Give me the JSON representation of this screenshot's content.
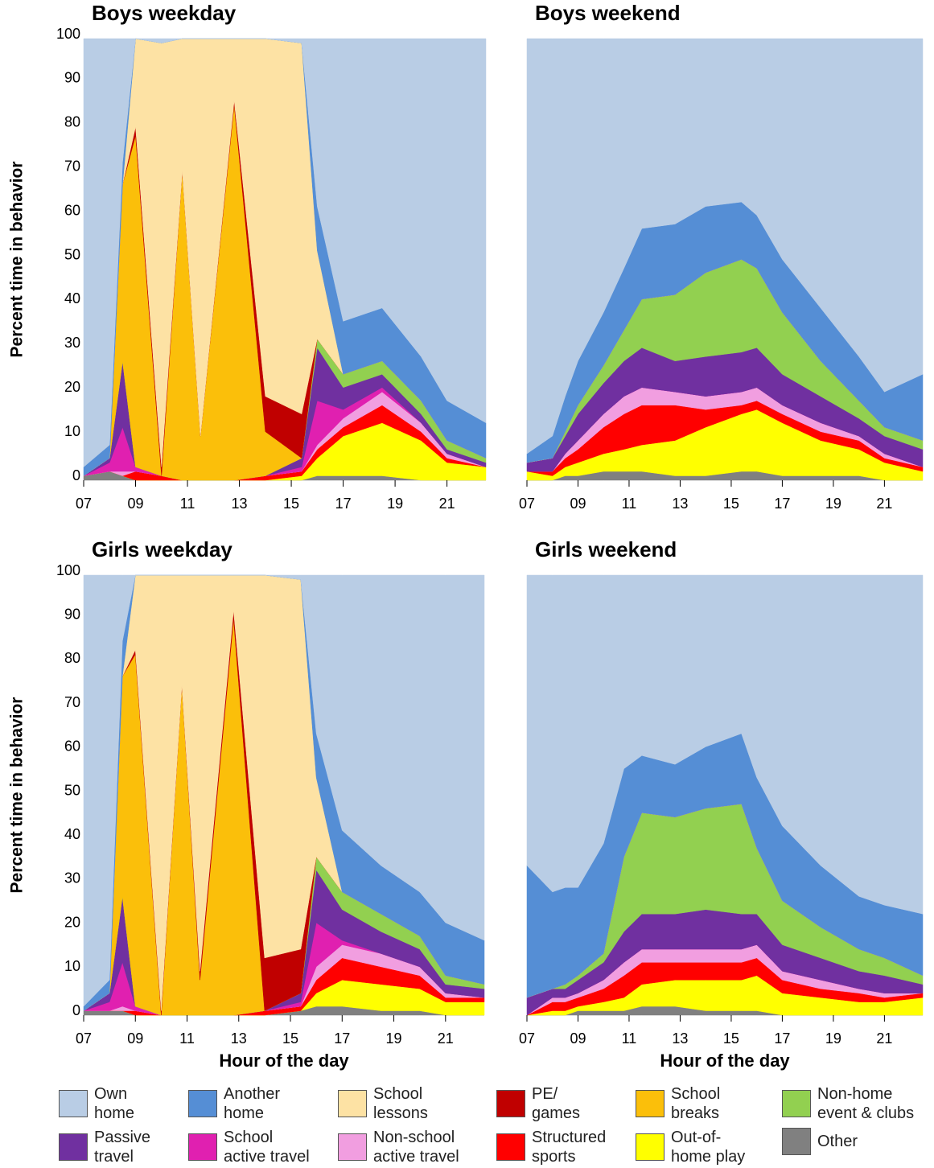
{
  "legend": {
    "items": [
      {
        "name": "Own\nhome",
        "color": "#b9cde5"
      },
      {
        "name": "Another\nhome",
        "color": "#558ed5"
      },
      {
        "name": "School\nlessons",
        "color": "#fde2a4"
      },
      {
        "name": "PE/\ngames",
        "color": "#c00000"
      },
      {
        "name": "School\nbreaks",
        "color": "#fbbf0a"
      },
      {
        "name": "Non-home\nevent & clubs",
        "color": "#92d050"
      },
      {
        "name": "Passive\ntravel",
        "color": "#7030a0"
      },
      {
        "name": "School\nactive travel",
        "color": "#e020b0"
      },
      {
        "name": "Non-school\nactive travel",
        "color": "#f19ee0"
      },
      {
        "name": "Structured\nsports",
        "color": "#ff0000"
      },
      {
        "name": "Out-of-\nhome play",
        "color": "#ffff00"
      },
      {
        "name": "Other",
        "color": "#808080"
      }
    ]
  },
  "chart_data": [
    {
      "type": "stacked-area",
      "title": "Boys weekday",
      "ylabel": "Percent time in behavior",
      "x": [
        7,
        8,
        8.5,
        9,
        10,
        10.8,
        11.5,
        12.8,
        14,
        15.4,
        16,
        17,
        18.5,
        20,
        21,
        22.5
      ],
      "xlim": [
        7,
        22.5
      ],
      "xticks": [
        {
          "value": 7,
          "label": "07"
        },
        {
          "value": 9,
          "label": "09"
        },
        11,
        13,
        15,
        17,
        19,
        21
      ],
      "ylim": [
        0,
        100
      ],
      "yticks": [
        0,
        10,
        20,
        30,
        40,
        50,
        60,
        70,
        80,
        90,
        100
      ],
      "series": [
        {
          "values": [
            97,
            92,
            28,
            0,
            1,
            0,
            0,
            0,
            0,
            1,
            38,
            64,
            61,
            72,
            82,
            87
          ]
        },
        {
          "values": [
            2,
            3,
            5,
            0,
            0,
            0,
            0,
            0,
            0,
            0,
            10,
            12,
            12,
            10,
            9,
            8
          ]
        },
        {
          "values": [
            0,
            0,
            0,
            20,
            96,
            30,
            90,
            14,
            81,
            84,
            20,
            0,
            0,
            0,
            0,
            0
          ]
        },
        {
          "values": [
            0,
            0,
            0,
            2,
            2,
            0,
            0,
            1,
            8,
            10,
            0,
            0,
            0,
            0,
            0,
            0
          ]
        },
        {
          "values": [
            0,
            0,
            40,
            75,
            0,
            70,
            10,
            85,
            10,
            0,
            0,
            0,
            0,
            0,
            0,
            0
          ]
        },
        {
          "values": [
            0,
            0,
            0,
            0,
            0,
            0,
            0,
            0,
            0,
            0,
            2,
            3,
            3,
            3,
            2,
            1
          ]
        },
        {
          "values": [
            0,
            1,
            15,
            0,
            0,
            0,
            0,
            0,
            0,
            2,
            12,
            5,
            3,
            2,
            1,
            1
          ]
        },
        {
          "values": [
            0,
            2,
            10,
            1,
            0,
            0,
            0,
            0,
            0,
            1,
            10,
            2,
            1,
            0,
            0,
            0
          ]
        },
        {
          "values": [
            0,
            0,
            1,
            0,
            0,
            0,
            0,
            0,
            0,
            0,
            1,
            2,
            3,
            2,
            1,
            0
          ]
        },
        {
          "values": [
            0,
            0,
            0,
            2,
            1,
            0,
            0,
            0,
            1,
            1,
            2,
            2,
            4,
            2,
            1,
            0
          ]
        },
        {
          "values": [
            0,
            0,
            0,
            0,
            0,
            0,
            0,
            0,
            0,
            1,
            4,
            9,
            12,
            9,
            4,
            3
          ]
        },
        {
          "values": [
            1,
            2,
            1,
            0,
            0,
            0,
            0,
            0,
            0,
            0,
            1,
            1,
            1,
            0,
            0,
            0
          ]
        }
      ]
    },
    {
      "type": "stacked-area",
      "title": "Boys weekend",
      "x": [
        7,
        8,
        8.5,
        9,
        10,
        10.8,
        11.5,
        12.8,
        14,
        15.4,
        16,
        17,
        18.5,
        20,
        21,
        22.5
      ],
      "xlim": [
        7,
        22.5
      ],
      "xticks": [
        {
          "value": 7,
          "label": "07"
        },
        {
          "value": 9,
          "label": "09"
        },
        11,
        13,
        15,
        17,
        19,
        21
      ],
      "ylim": [
        0,
        100
      ],
      "series": [
        {
          "values": [
            94,
            90,
            81,
            73,
            62,
            52,
            43,
            42,
            38,
            37,
            40,
            50,
            61,
            72,
            80,
            76
          ]
        },
        {
          "values": [
            2,
            5,
            8,
            10,
            12,
            14,
            16,
            16,
            15,
            13,
            12,
            12,
            12,
            10,
            8,
            15
          ]
        },
        {
          "values": [
            0,
            0,
            0,
            0,
            0,
            0,
            0,
            0,
            0,
            0,
            0,
            0,
            0,
            0,
            0,
            0
          ]
        },
        {
          "values": [
            0,
            0,
            0,
            0,
            0,
            0,
            0,
            0,
            0,
            0,
            0,
            0,
            0,
            0,
            0,
            0
          ]
        },
        {
          "values": [
            0,
            0,
            0,
            0,
            0,
            0,
            0,
            0,
            0,
            0,
            0,
            0,
            0,
            0,
            0,
            0
          ]
        },
        {
          "values": [
            0,
            0,
            1,
            2,
            4,
            7,
            11,
            15,
            19,
            21,
            18,
            14,
            8,
            4,
            2,
            2
          ]
        },
        {
          "values": [
            2,
            3,
            4,
            6,
            7,
            8,
            9,
            7,
            9,
            9,
            9,
            7,
            6,
            4,
            4,
            4
          ]
        },
        {
          "values": [
            0,
            0,
            0,
            0,
            0,
            0,
            0,
            0,
            0,
            0,
            0,
            0,
            0,
            0,
            0,
            0
          ]
        },
        {
          "values": [
            0,
            0,
            1,
            2,
            3,
            4,
            4,
            3,
            3,
            3,
            3,
            2,
            2,
            1,
            1,
            0
          ]
        },
        {
          "values": [
            0,
            1,
            2,
            3,
            6,
            8,
            9,
            8,
            4,
            2,
            2,
            2,
            2,
            2,
            1,
            1
          ]
        },
        {
          "values": [
            2,
            1,
            2,
            3,
            4,
            5,
            6,
            8,
            11,
            13,
            14,
            12,
            8,
            6,
            4,
            2
          ]
        },
        {
          "values": [
            0,
            0,
            1,
            1,
            2,
            2,
            2,
            1,
            1,
            2,
            2,
            1,
            1,
            1,
            0,
            0
          ]
        }
      ]
    },
    {
      "type": "stacked-area",
      "title": "Girls weekday",
      "ylabel": "Percent time in behavior",
      "xlabel": "Hour of the  day",
      "x": [
        7,
        8,
        8.5,
        9,
        10,
        10.8,
        11.5,
        12.8,
        14,
        15.4,
        16,
        17,
        18.5,
        20,
        21,
        22.5
      ],
      "xlim": [
        7,
        22.5
      ],
      "xticks": [
        {
          "value": 7,
          "label": "07"
        },
        {
          "value": 9,
          "label": "09"
        },
        11,
        13,
        15,
        17,
        19,
        21
      ],
      "ylim": [
        0,
        100
      ],
      "yticks": [
        0,
        10,
        20,
        30,
        40,
        50,
        60,
        70,
        80,
        90,
        100
      ],
      "series": [
        {
          "values": [
            98,
            92,
            15,
            0,
            0,
            0,
            0,
            0,
            0,
            1,
            36,
            58,
            66,
            72,
            79,
            83
          ]
        },
        {
          "values": [
            1,
            3,
            8,
            0,
            0,
            0,
            0,
            0,
            0,
            0,
            10,
            14,
            11,
            10,
            12,
            10
          ]
        },
        {
          "values": [
            0,
            0,
            0,
            17,
            99,
            25,
            90,
            8,
            87,
            84,
            18,
            0,
            0,
            0,
            0,
            0
          ]
        },
        {
          "values": [
            0,
            0,
            0,
            1,
            1,
            0,
            2,
            2,
            12,
            10,
            0,
            0,
            0,
            0,
            0,
            0
          ]
        },
        {
          "values": [
            0,
            0,
            50,
            80,
            0,
            75,
            8,
            90,
            0,
            0,
            0,
            0,
            0,
            0,
            0,
            0
          ]
        },
        {
          "values": [
            0,
            0,
            0,
            0,
            0,
            0,
            0,
            0,
            0,
            0,
            3,
            4,
            4,
            3,
            2,
            1
          ]
        },
        {
          "values": [
            0,
            2,
            15,
            0,
            0,
            0,
            0,
            0,
            0,
            2,
            12,
            7,
            5,
            4,
            2,
            2
          ]
        },
        {
          "values": [
            0,
            2,
            10,
            1,
            0,
            0,
            0,
            0,
            0,
            1,
            10,
            1,
            0,
            0,
            0,
            0
          ]
        },
        {
          "values": [
            0,
            0,
            1,
            0,
            0,
            0,
            0,
            0,
            0,
            0,
            3,
            3,
            3,
            2,
            1,
            0
          ]
        },
        {
          "values": [
            0,
            0,
            0,
            1,
            0,
            0,
            0,
            0,
            1,
            1,
            3,
            5,
            4,
            3,
            1,
            1
          ]
        },
        {
          "values": [
            0,
            0,
            0,
            0,
            0,
            0,
            0,
            0,
            0,
            0,
            3,
            6,
            6,
            5,
            3,
            3
          ]
        },
        {
          "values": [
            1,
            1,
            1,
            0,
            0,
            0,
            0,
            0,
            0,
            1,
            2,
            2,
            1,
            1,
            0,
            0
          ]
        }
      ]
    },
    {
      "type": "stacked-area",
      "title": "Girls weekend",
      "xlabel": "Hour of the  day",
      "x": [
        7,
        8,
        8.5,
        9,
        10,
        10.8,
        11.5,
        12.8,
        14,
        15.4,
        16,
        17,
        18.5,
        20,
        21,
        22.5
      ],
      "xlim": [
        7,
        22.5
      ],
      "xticks": [
        {
          "value": 7,
          "label": "07"
        },
        {
          "value": 9,
          "label": "09"
        },
        11,
        13,
        15,
        17,
        19,
        21
      ],
      "ylim": [
        0,
        100
      ],
      "series": [
        {
          "values": [
            66,
            72,
            71,
            71,
            61,
            44,
            41,
            43,
            39,
            36,
            46,
            57,
            66,
            73,
            75,
            77
          ]
        },
        {
          "values": [
            30,
            22,
            22,
            20,
            25,
            20,
            13,
            12,
            14,
            16,
            16,
            17,
            14,
            12,
            12,
            14
          ]
        },
        {
          "values": [
            0,
            0,
            0,
            0,
            0,
            0,
            0,
            0,
            0,
            0,
            0,
            0,
            0,
            0,
            0,
            0
          ]
        },
        {
          "values": [
            0,
            0,
            0,
            0,
            0,
            0,
            0,
            0,
            0,
            0,
            0,
            0,
            0,
            0,
            0,
            0
          ]
        },
        {
          "values": [
            0,
            0,
            0,
            0,
            0,
            0,
            0,
            0,
            0,
            0,
            0,
            0,
            0,
            0,
            0,
            0
          ]
        },
        {
          "values": [
            0,
            0,
            1,
            1,
            2,
            17,
            23,
            22,
            23,
            25,
            15,
            10,
            7,
            5,
            4,
            2
          ]
        },
        {
          "values": [
            4,
            2,
            2,
            3,
            4,
            7,
            8,
            8,
            9,
            8,
            7,
            6,
            5,
            4,
            4,
            2
          ]
        },
        {
          "values": [
            0,
            0,
            0,
            0,
            0,
            0,
            0,
            0,
            0,
            0,
            0,
            0,
            0,
            0,
            0,
            0
          ]
        },
        {
          "values": [
            0,
            1,
            1,
            1,
            2,
            3,
            3,
            3,
            3,
            3,
            3,
            2,
            2,
            1,
            1,
            0
          ]
        },
        {
          "values": [
            0,
            2,
            2,
            2,
            3,
            5,
            5,
            4,
            4,
            4,
            4,
            3,
            2,
            2,
            1,
            1
          ]
        },
        {
          "values": [
            0,
            1,
            1,
            1,
            2,
            3,
            5,
            6,
            7,
            7,
            8,
            5,
            4,
            3,
            3,
            4
          ]
        },
        {
          "values": [
            0,
            0,
            0,
            1,
            1,
            1,
            2,
            2,
            1,
            1,
            1,
            0,
            0,
            0,
            0,
            0
          ]
        }
      ]
    }
  ]
}
